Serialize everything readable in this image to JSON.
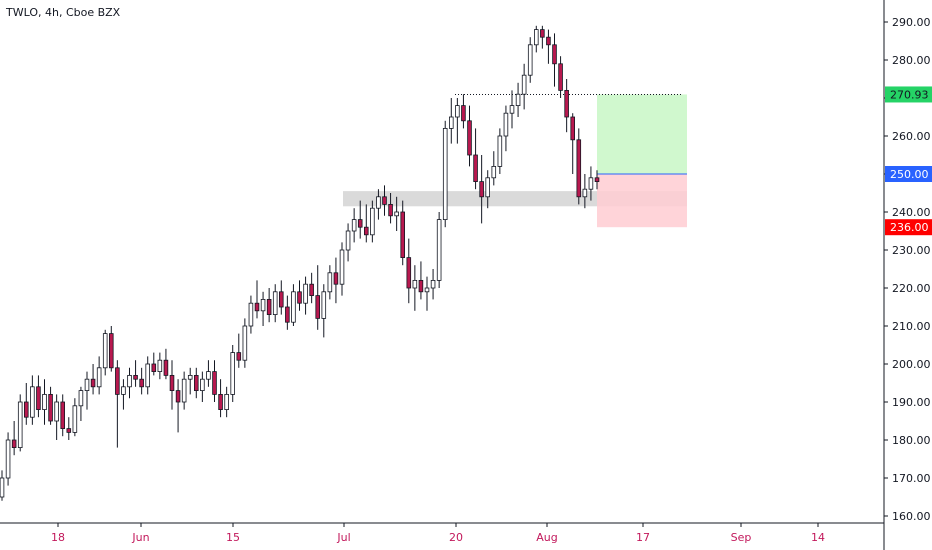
{
  "header": {
    "symbol_line": "TWLO, 4h, Cboe BZX"
  },
  "colors": {
    "up": "#ffffff",
    "down": "#b8194f",
    "wick": "#131722",
    "target_fill": "#c8f7c5",
    "stop_fill": "#ffcdd2",
    "zone_fill": "#d6d6d6",
    "price_tag_target": "#25d366",
    "price_tag_entry": "#2962ff",
    "price_tag_stop": "#ff0000",
    "axis_text": "#131722",
    "time_text": "#c2185b"
  },
  "chart_data": {
    "type": "candlestick",
    "title": "TWLO, 4h, Cboe BZX",
    "ylim": [
      157,
      295
    ],
    "y_ticks": [
      160,
      170,
      180,
      190,
      200,
      210,
      220,
      230,
      240,
      250,
      260,
      270,
      280,
      290
    ],
    "y_tick_labels": [
      "160.00",
      "170.00",
      "180.00",
      "190.00",
      "200.00",
      "210.00",
      "220.00",
      "230.00",
      "240.00",
      "250.00",
      "260.00",
      "270.00",
      "280.00",
      "290.00"
    ],
    "x_tick_labels": [
      "18",
      "Jun",
      "15",
      "Jul",
      "20",
      "Aug",
      "17",
      "Sep",
      "14"
    ],
    "candles_ohlc": [
      [
        165,
        172,
        164,
        170
      ],
      [
        170,
        182,
        168,
        180
      ],
      [
        180,
        185,
        176,
        178
      ],
      [
        178,
        192,
        177,
        190
      ],
      [
        190,
        195,
        184,
        186
      ],
      [
        186,
        197,
        184,
        194
      ],
      [
        194,
        197,
        186,
        188
      ],
      [
        188,
        196,
        184,
        192
      ],
      [
        192,
        194,
        184,
        185
      ],
      [
        185,
        192,
        180,
        190
      ],
      [
        190,
        192,
        181,
        183
      ],
      [
        183,
        186,
        180,
        182
      ],
      [
        182,
        191,
        181,
        189
      ],
      [
        189,
        194,
        185,
        193
      ],
      [
        193,
        198,
        188,
        196
      ],
      [
        196,
        200,
        192,
        194
      ],
      [
        194,
        202,
        192,
        199
      ],
      [
        199,
        209,
        197,
        208
      ],
      [
        208,
        210,
        198,
        199
      ],
      [
        199,
        201,
        178,
        192
      ],
      [
        192,
        196,
        188,
        194
      ],
      [
        194,
        199,
        191,
        197
      ],
      [
        197,
        201,
        194,
        196
      ],
      [
        196,
        199,
        192,
        194
      ],
      [
        194,
        202,
        192,
        200
      ],
      [
        200,
        203,
        197,
        198
      ],
      [
        198,
        203,
        196,
        201
      ],
      [
        201,
        204,
        196,
        197
      ],
      [
        197,
        201,
        188,
        193
      ],
      [
        193,
        196,
        182,
        190
      ],
      [
        190,
        198,
        188,
        196
      ],
      [
        196,
        199,
        192,
        197
      ],
      [
        197,
        199,
        191,
        193
      ],
      [
        193,
        198,
        190,
        196
      ],
      [
        196,
        201,
        194,
        198
      ],
      [
        198,
        201,
        190,
        192
      ],
      [
        192,
        196,
        186,
        188
      ],
      [
        188,
        194,
        186,
        192
      ],
      [
        192,
        205,
        190,
        203
      ],
      [
        203,
        208,
        199,
        201
      ],
      [
        201,
        212,
        199,
        210
      ],
      [
        210,
        218,
        208,
        216
      ],
      [
        216,
        222,
        212,
        214
      ],
      [
        214,
        219,
        210,
        217
      ],
      [
        217,
        220,
        211,
        213
      ],
      [
        213,
        221,
        211,
        219
      ],
      [
        219,
        222,
        213,
        215
      ],
      [
        215,
        218,
        209,
        211
      ],
      [
        211,
        221,
        210,
        219
      ],
      [
        219,
        222,
        214,
        216
      ],
      [
        216,
        223,
        213,
        221
      ],
      [
        221,
        224,
        216,
        218
      ],
      [
        218,
        226,
        209,
        212
      ],
      [
        212,
        221,
        207,
        219
      ],
      [
        219,
        226,
        217,
        224
      ],
      [
        224,
        228,
        216,
        221
      ],
      [
        221,
        232,
        218,
        230
      ],
      [
        230,
        237,
        227,
        235
      ],
      [
        235,
        241,
        232,
        238
      ],
      [
        238,
        243,
        233,
        236
      ],
      [
        236,
        242,
        232,
        234
      ],
      [
        234,
        243,
        232,
        241
      ],
      [
        241,
        246,
        238,
        244
      ],
      [
        244,
        247,
        239,
        242
      ],
      [
        242,
        245,
        237,
        239
      ],
      [
        239,
        244,
        235,
        240
      ],
      [
        240,
        243,
        226,
        228
      ],
      [
        228,
        233,
        216,
        220
      ],
      [
        220,
        226,
        214,
        222
      ],
      [
        222,
        227,
        217,
        219
      ],
      [
        219,
        223,
        214,
        220
      ],
      [
        220,
        225,
        217,
        222
      ],
      [
        222,
        240,
        220,
        238
      ],
      [
        238,
        264,
        236,
        262
      ],
      [
        262,
        270,
        258,
        265
      ],
      [
        265,
        270,
        258,
        268
      ],
      [
        268,
        271,
        262,
        264
      ],
      [
        264,
        268,
        252,
        255
      ],
      [
        255,
        262,
        246,
        248
      ],
      [
        248,
        255,
        237,
        244
      ],
      [
        244,
        251,
        241,
        249
      ],
      [
        249,
        256,
        247,
        252
      ],
      [
        252,
        262,
        250,
        260
      ],
      [
        260,
        268,
        256,
        266
      ],
      [
        266,
        272,
        262,
        268
      ],
      [
        268,
        274,
        265,
        271
      ],
      [
        271,
        279,
        267,
        276
      ],
      [
        276,
        286,
        274,
        284
      ],
      [
        284,
        289,
        282,
        288
      ],
      [
        288,
        289,
        283,
        286
      ],
      [
        286,
        288,
        279,
        284
      ],
      [
        284,
        287,
        273,
        279
      ],
      [
        279,
        281,
        270,
        272
      ],
      [
        272,
        275,
        261,
        265
      ],
      [
        265,
        266,
        250,
        259
      ],
      [
        259,
        262,
        242,
        244
      ],
      [
        244,
        250,
        241,
        246
      ],
      [
        246,
        252,
        243,
        249
      ],
      [
        249,
        251,
        246,
        248
      ]
    ],
    "levels": {
      "target": 270.93,
      "entry": 250.0,
      "stop": 236.0,
      "resistance_dotted": 270.93,
      "support_zone": [
        241.5,
        245.5
      ]
    },
    "price_labels": {
      "target": "270.93",
      "entry": "250.00",
      "stop": "236.00"
    },
    "grid": false,
    "legend": "none"
  }
}
